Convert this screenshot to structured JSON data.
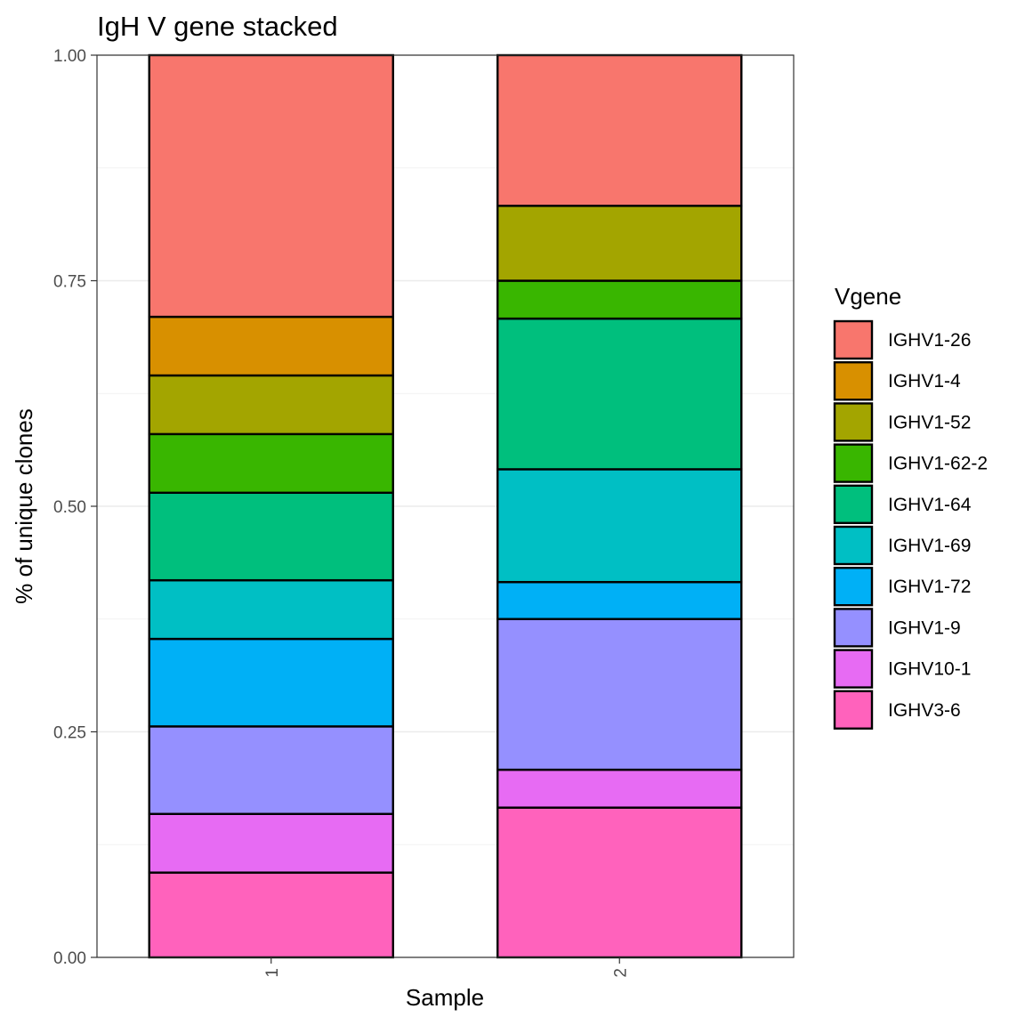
{
  "chart_data": {
    "type": "bar",
    "stacked": true,
    "title": "IgH V gene stacked",
    "xlabel": "Sample",
    "ylabel": "% of unique clones",
    "categories": [
      "1",
      "2"
    ],
    "ylim": [
      0,
      1
    ],
    "yticks": [
      "0.00",
      "0.25",
      "0.50",
      "0.75",
      "1.00"
    ],
    "grid": true,
    "legend": {
      "title": "Vgene",
      "position": "right"
    },
    "series": [
      {
        "name": "IGHV1-26",
        "color": "#F8766D",
        "values": [
          0.29,
          0.167
        ]
      },
      {
        "name": "IGHV1-4",
        "color": "#D89000",
        "values": [
          0.065,
          0.0
        ]
      },
      {
        "name": "IGHV1-52",
        "color": "#A3A500",
        "values": [
          0.065,
          0.083
        ]
      },
      {
        "name": "IGHV1-62-2",
        "color": "#39B600",
        "values": [
          0.065,
          0.042
        ]
      },
      {
        "name": "IGHV1-64",
        "color": "#00BF7D",
        "values": [
          0.097,
          0.167
        ]
      },
      {
        "name": "IGHV1-69",
        "color": "#00BFC4",
        "values": [
          0.065,
          0.125
        ]
      },
      {
        "name": "IGHV1-72",
        "color": "#00B0F6",
        "values": [
          0.097,
          0.041
        ]
      },
      {
        "name": "IGHV1-9",
        "color": "#9590FF",
        "values": [
          0.097,
          0.167
        ]
      },
      {
        "name": "IGHV10-1",
        "color": "#E76BF3",
        "values": [
          0.065,
          0.042
        ]
      },
      {
        "name": "IGHV3-6",
        "color": "#FF62BC",
        "values": [
          0.094,
          0.166
        ]
      }
    ]
  }
}
